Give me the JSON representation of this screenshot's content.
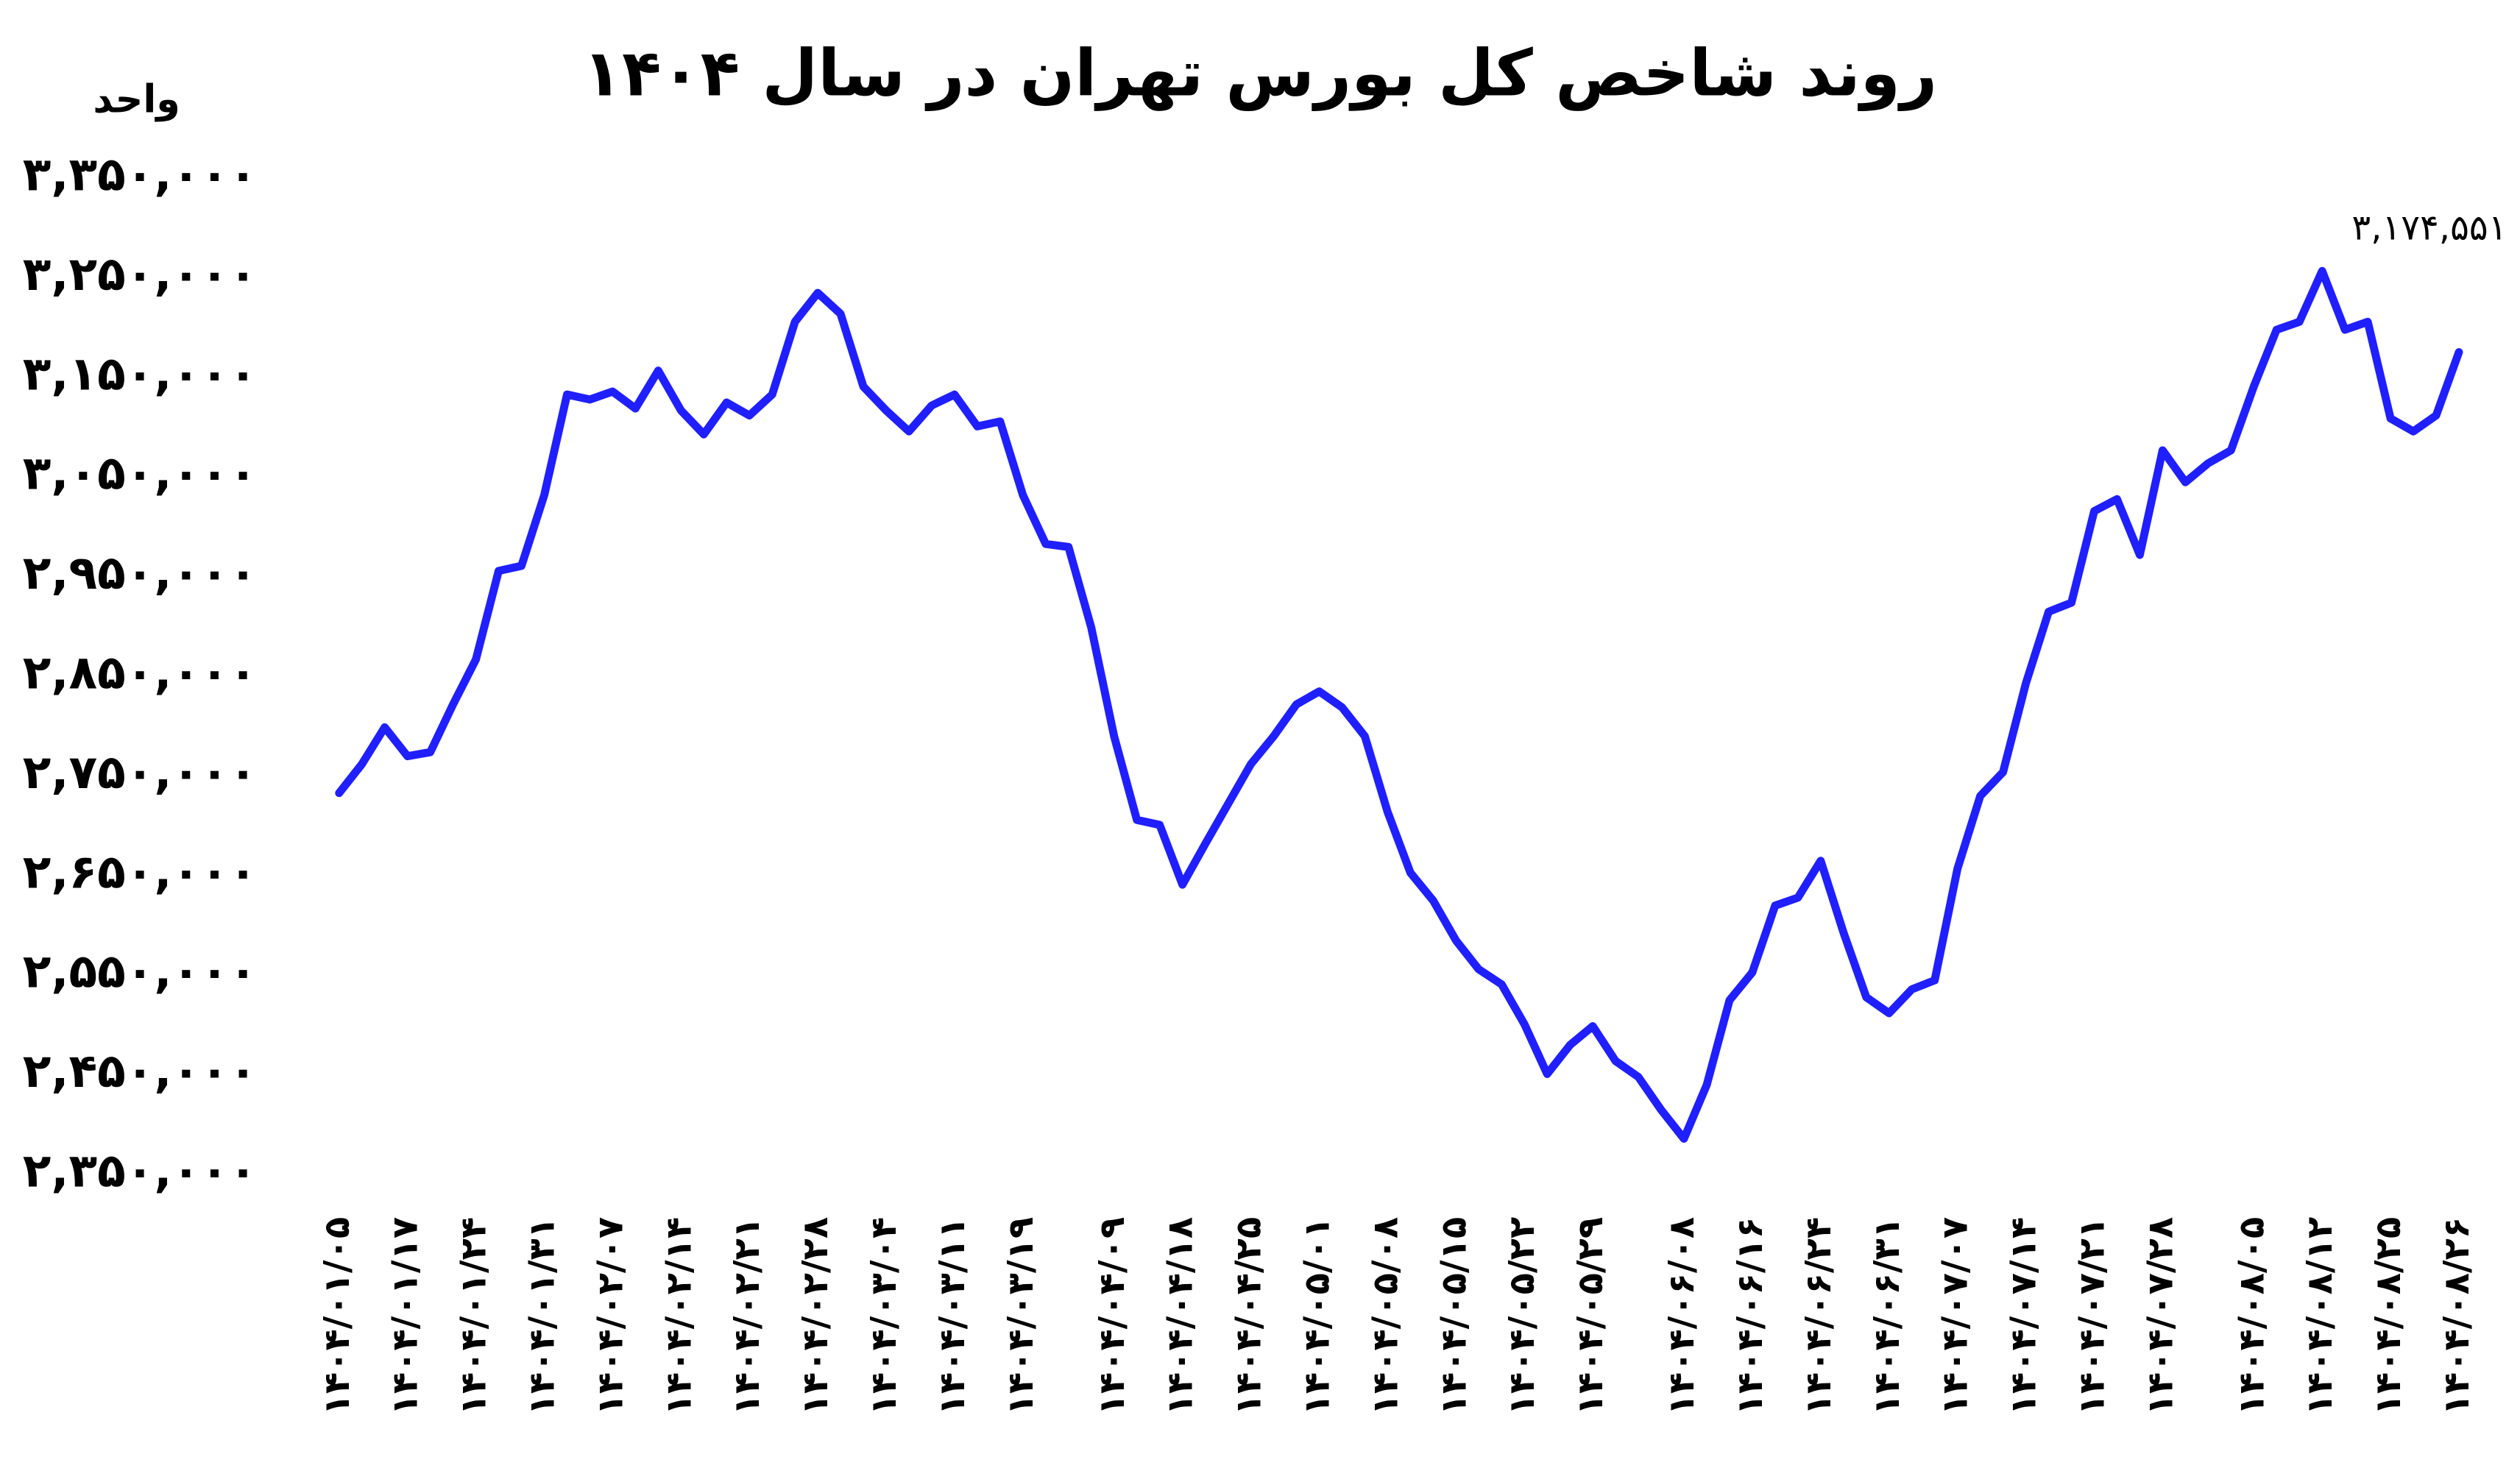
{
  "chart_data": {
    "type": "line",
    "title": "روند شاخص کل بورس تهران در سال ۱۴۰۴",
    "y_label": "واحد",
    "categories": [
      "۱۴۰۴/۰۱/۰۵",
      null,
      null,
      "۱۴۰۴/۰۱/۱۷",
      null,
      null,
      "۱۴۰۴/۰۱/۲۴",
      null,
      null,
      "۱۴۰۴/۰۱/۳۱",
      null,
      null,
      "۱۴۰۴/۰۲/۰۷",
      null,
      null,
      "۱۴۰۴/۰۲/۱۴",
      null,
      null,
      "۱۴۰۴/۰۲/۲۱",
      null,
      null,
      "۱۴۰۴/۰۲/۲۸",
      null,
      null,
      "۱۴۰۴/۰۳/۰۴",
      null,
      null,
      "۱۴۰۴/۰۳/۱۱",
      null,
      null,
      "۱۴۰۴/۰۳/۱۹",
      null,
      null,
      null,
      "۱۴۰۴/۰۴/۰۹",
      null,
      null,
      "۱۴۰۴/۰۴/۱۸",
      null,
      null,
      "۱۴۰۴/۰۴/۲۵",
      null,
      null,
      "۱۴۰۴/۰۵/۰۱",
      null,
      null,
      "۱۴۰۴/۰۵/۰۸",
      null,
      null,
      "۱۴۰۴/۰۵/۱۵",
      null,
      null,
      "۱۴۰۴/۰۵/۲۲",
      null,
      null,
      "۱۴۰۴/۰۵/۲۹",
      null,
      null,
      null,
      "۱۴۰۴/۰۶/۰۸",
      null,
      null,
      "۱۴۰۴/۰۶/۱۶",
      null,
      null,
      "۱۴۰۴/۰۶/۲۴",
      null,
      null,
      "۱۴۰۴/۰۶/۳۱",
      null,
      null,
      "۱۴۰۴/۰۷/۰۷",
      null,
      null,
      "۱۴۰۴/۰۷/۱۴",
      null,
      null,
      "۱۴۰۴/۰۷/۲۱",
      null,
      null,
      "۱۴۰۴/۰۷/۲۸",
      null,
      null,
      null,
      "۱۴۰۴/۰۸/۰۵",
      null,
      null,
      "۱۴۰۴/۰۸/۱۲",
      null,
      null,
      "۱۴۰۴/۰۸/۲۵",
      null,
      null,
      "۱۴۰۴/۰۸/۲۶"
    ],
    "values": [
      2732000,
      2761000,
      2798000,
      2769000,
      2773000,
      2821000,
      2866000,
      2955000,
      2960000,
      3031000,
      3132000,
      3127000,
      3135000,
      3118000,
      3156000,
      3116000,
      3092000,
      3124000,
      3111000,
      3132000,
      3205000,
      3234000,
      3213000,
      3140000,
      3116000,
      3095000,
      3121000,
      3132000,
      3100000,
      3105000,
      3031000,
      2982000,
      2979000,
      2898000,
      2789000,
      2705000,
      2700000,
      2640000,
      2681000,
      2721000,
      2761000,
      2789000,
      2821000,
      2834000,
      2818000,
      2789000,
      2713000,
      2652000,
      2624000,
      2584000,
      2555000,
      2540000,
      2500000,
      2450000,
      2479000,
      2498000,
      2463000,
      2447000,
      2414000,
      2385000,
      2439000,
      2524000,
      2552000,
      2619000,
      2627000,
      2664000,
      2592000,
      2527000,
      2511000,
      2535000,
      2544000,
      2656000,
      2729000,
      2753000,
      2842000,
      2914000,
      2923000,
      3015000,
      3027000,
      2971000,
      3076000,
      3044000,
      3063000,
      3076000,
      3140000,
      3197000,
      3205000,
      3256000,
      3197000,
      3205000,
      3108000,
      3095000,
      3111000,
      3174551
    ],
    "value_labels": [
      null,
      null,
      null,
      null,
      null,
      null,
      null,
      null,
      null,
      null,
      null,
      null,
      null,
      null,
      null,
      null,
      null,
      null,
      null,
      null,
      null,
      null,
      null,
      null,
      null,
      null,
      null,
      null,
      null,
      null,
      null,
      null,
      null,
      null,
      null,
      null,
      null,
      null,
      null,
      null,
      null,
      null,
      null,
      null,
      null,
      null,
      null,
      null,
      null,
      null,
      null,
      null,
      null,
      null,
      null,
      null,
      null,
      null,
      null,
      null,
      null,
      null,
      null,
      null,
      null,
      null,
      null,
      null,
      null,
      null,
      null,
      null,
      null,
      null,
      null,
      null,
      null,
      null,
      null,
      null,
      null,
      null,
      null,
      null,
      null,
      null,
      null,
      null,
      null,
      null,
      null,
      null,
      null,
      "۳,۱۷۴,۵۵۱"
    ],
    "color": "#1f1fff",
    "ylim": [
      2350000,
      3350000
    ],
    "yticks": [
      {
        "value": 2350000,
        "label": "۲,۳۵۰,۰۰۰"
      },
      {
        "value": 2450000,
        "label": "۲,۴۵۰,۰۰۰"
      },
      {
        "value": 2550000,
        "label": "۲,۵۵۰,۰۰۰"
      },
      {
        "value": 2650000,
        "label": "۲,۶۵۰,۰۰۰"
      },
      {
        "value": 2750000,
        "label": "۲,۷۵۰,۰۰۰"
      },
      {
        "value": 2850000,
        "label": "۲,۸۵۰,۰۰۰"
      },
      {
        "value": 2950000,
        "label": "۲,۹۵۰,۰۰۰"
      },
      {
        "value": 3050000,
        "label": "۳,۰۵۰,۰۰۰"
      },
      {
        "value": 3150000,
        "label": "۳,۱۵۰,۰۰۰"
      },
      {
        "value": 3250000,
        "label": "۳,۲۵۰,۰۰۰"
      },
      {
        "value": 3350000,
        "label": "۳,۳۵۰,۰۰۰"
      }
    ],
    "grid": false
  }
}
